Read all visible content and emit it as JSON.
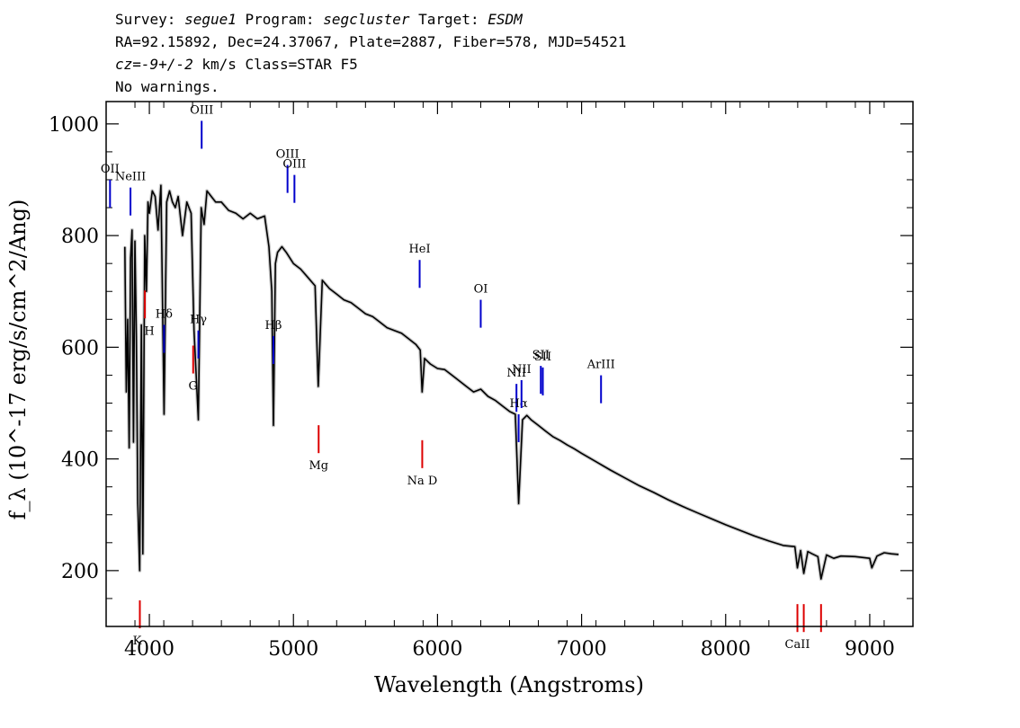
{
  "header": {
    "line1": {
      "survey_label": "Survey: ",
      "survey": "segue1",
      "program_label": " Program: ",
      "program": "segcluster",
      "target_label": " Target: ",
      "target": "ESDM"
    },
    "line2": "RA=92.15892, Dec=24.37067, Plate=2887, Fiber=578, MJD=54521",
    "line3": {
      "cz_label": "cz=",
      "cz": "-9+/-2",
      "cz_unit": " km/s",
      "class": " Class=STAR F5"
    },
    "line4": "No warnings."
  },
  "chart_data": {
    "type": "line",
    "xlabel": "Wavelength (Angstroms)",
    "ylabel": "f_λ (10^-17 erg/s/cm^2/Ang)",
    "xlim": [
      3700,
      9300
    ],
    "ylim": [
      100,
      1040
    ],
    "x_ticks": [
      4000,
      5000,
      6000,
      7000,
      8000,
      9000
    ],
    "y_ticks": [
      200,
      400,
      600,
      800,
      1000
    ],
    "x_tick_labels": [
      "4000",
      "5000",
      "6000",
      "7000",
      "8000",
      "9000"
    ],
    "y_tick_labels": [
      "200",
      "400",
      "600",
      "800",
      "1000"
    ],
    "series": [
      {
        "color": "#000000",
        "x": [
          3830,
          3840,
          3850,
          3860,
          3870,
          3880,
          3890,
          3900,
          3910,
          3920,
          3933,
          3945,
          3955,
          3968,
          3980,
          3990,
          4000,
          4020,
          4040,
          4060,
          4080,
          4102,
          4120,
          4140,
          4160,
          4180,
          4200,
          4230,
          4260,
          4290,
          4310,
          4340,
          4360,
          4380,
          4400,
          4430,
          4460,
          4500,
          4550,
          4600,
          4650,
          4700,
          4750,
          4800,
          4830,
          4850,
          4861,
          4875,
          4890,
          4920,
          4950,
          5000,
          5050,
          5100,
          5150,
          5172,
          5200,
          5250,
          5300,
          5350,
          5400,
          5450,
          5500,
          5550,
          5600,
          5650,
          5700,
          5750,
          5800,
          5850,
          5880,
          5893,
          5910,
          5950,
          6000,
          6050,
          6100,
          6150,
          6200,
          6250,
          6300,
          6350,
          6400,
          6450,
          6500,
          6540,
          6563,
          6590,
          6620,
          6650,
          6700,
          6750,
          6800,
          6850,
          6900,
          6950,
          7000,
          7100,
          7200,
          7300,
          7400,
          7500,
          7600,
          7700,
          7800,
          7900,
          8000,
          8100,
          8200,
          8300,
          8400,
          8480,
          8498,
          8520,
          8542,
          8570,
          8600,
          8640,
          8662,
          8700,
          8750,
          8800,
          8900,
          9000,
          9015,
          9050,
          9100,
          9150,
          9200
        ],
        "y": [
          780,
          520,
          650,
          420,
          760,
          810,
          430,
          790,
          620,
          320,
          200,
          640,
          230,
          800,
          700,
          860,
          840,
          880,
          870,
          810,
          890,
          480,
          860,
          880,
          860,
          850,
          870,
          800,
          860,
          840,
          630,
          470,
          850,
          820,
          880,
          870,
          860,
          860,
          845,
          840,
          830,
          840,
          830,
          835,
          780,
          700,
          460,
          750,
          770,
          780,
          770,
          750,
          740,
          725,
          710,
          530,
          720,
          705,
          695,
          685,
          680,
          670,
          660,
          655,
          645,
          635,
          630,
          625,
          615,
          605,
          595,
          520,
          580,
          570,
          562,
          560,
          550,
          540,
          530,
          520,
          525,
          512,
          505,
          495,
          485,
          480,
          320,
          470,
          478,
          470,
          460,
          450,
          440,
          433,
          425,
          418,
          410,
          395,
          380,
          366,
          352,
          340,
          327,
          315,
          304,
          293,
          282,
          272,
          262,
          253,
          245,
          243,
          205,
          236,
          195,
          234,
          230,
          225,
          185,
          228,
          222,
          226,
          225,
          222,
          205,
          226,
          232,
          230,
          229
        ]
      }
    ],
    "annotations": {
      "emission": [
        {
          "label": "OII",
          "x": 3727,
          "above": true
        },
        {
          "label": "NeIII",
          "x": 3869,
          "above": true
        },
        {
          "label": "Hδ",
          "x": 4102,
          "above": true
        },
        {
          "label": "Hγ",
          "x": 4340,
          "above": true
        },
        {
          "label": "OIII",
          "x": 4363,
          "above": true
        },
        {
          "label": "Hβ",
          "x": 4861,
          "above": true
        },
        {
          "label": "OIII",
          "x": 4959,
          "above": true
        },
        {
          "label": "OIII",
          "x": 5007,
          "above": true
        },
        {
          "label": "HeI",
          "x": 5876,
          "above": true
        },
        {
          "label": "OI",
          "x": 6300,
          "above": true
        },
        {
          "label": "NII",
          "x": 6548,
          "above": false
        },
        {
          "label": "Hα",
          "x": 6563,
          "above": true
        },
        {
          "label": "NII",
          "x": 6583,
          "above": false
        },
        {
          "label": "SII",
          "x": 6717,
          "above": false
        },
        {
          "label": "SII",
          "x": 6731,
          "above": false
        },
        {
          "label": "ArIII",
          "x": 7135,
          "above": true
        }
      ],
      "absorption": [
        {
          "label": "K",
          "x": 3934
        },
        {
          "label": "H",
          "x": 3969
        },
        {
          "label": "G",
          "x": 4304
        },
        {
          "label": "Mg",
          "x": 5175
        },
        {
          "label": "Na D",
          "x": 5894
        },
        {
          "label": "CaII",
          "x": 8498
        },
        {
          "label": "CaII",
          "x": 8542
        },
        {
          "label": "CaII",
          "x": 8662
        }
      ]
    },
    "colors": {
      "emission": "#0000cc",
      "absorption": "#dd0000",
      "narrow_marker": "#000000",
      "spectrum": "#000000"
    }
  }
}
